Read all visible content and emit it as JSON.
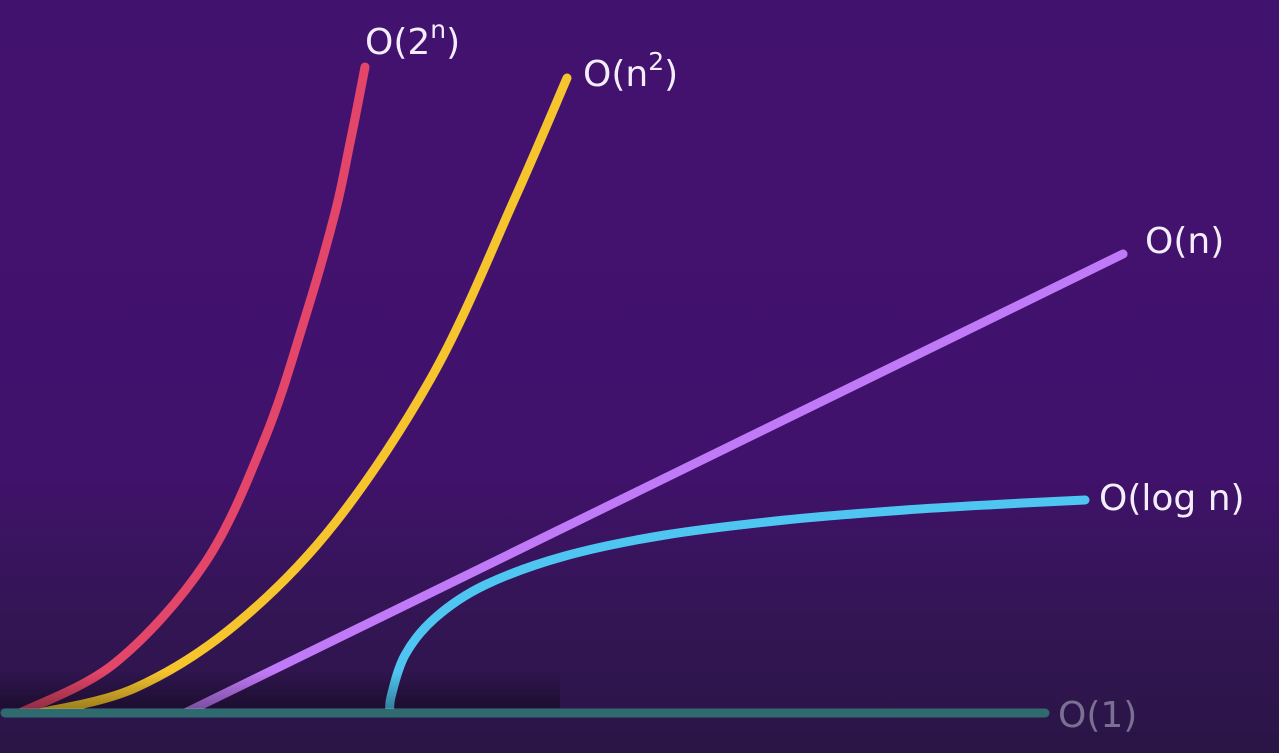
{
  "chart_data": {
    "type": "line",
    "title": "",
    "xlabel": "",
    "ylabel": "",
    "grid": false,
    "legend": "none",
    "series": [
      {
        "name": "O(1)",
        "label_parts": {
          "base": "O(1)",
          "sup": "",
          "tail": ""
        },
        "color": "#2f6a6e",
        "x": [
          0,
          1040
        ],
        "y": [
          0,
          0
        ]
      },
      {
        "name": "O(log n)",
        "label_parts": {
          "base": "O(log n)",
          "sup": "",
          "tail": ""
        },
        "color": "#4fc6f2",
        "x": [
          385,
          386,
          400,
          430,
          480,
          560,
          660,
          780,
          900,
          1000,
          1080
        ],
        "y": [
          0,
          16,
          58,
          95,
          128,
          157,
          178,
          193,
          203,
          209,
          213
        ]
      },
      {
        "name": "O(n)",
        "label_parts": {
          "base": "O(n)",
          "sup": "",
          "tail": ""
        },
        "color": "#c07af8",
        "x": [
          180,
          1118
        ],
        "y": [
          0,
          459
        ]
      },
      {
        "name": "O(n²)",
        "label_parts": {
          "base": "O(n",
          "sup": "2",
          "tail": ")"
        },
        "color": "#f6c52e",
        "x": [
          35,
          130,
          230,
          330,
          430,
          510,
          562
        ],
        "y": [
          0,
          25,
          88,
          190,
          342,
          515,
          635
        ]
      },
      {
        "name": "O(2ⁿ)",
        "label_parts": {
          "base": "O(2",
          "sup": "n",
          "tail": ")"
        },
        "color": "#e44669",
        "x": [
          15,
          110,
          200,
          260,
          300,
          330,
          345,
          355,
          360
        ],
        "y": [
          0,
          50,
          150,
          275,
          395,
          500,
          570,
          620,
          646
        ]
      }
    ]
  }
}
